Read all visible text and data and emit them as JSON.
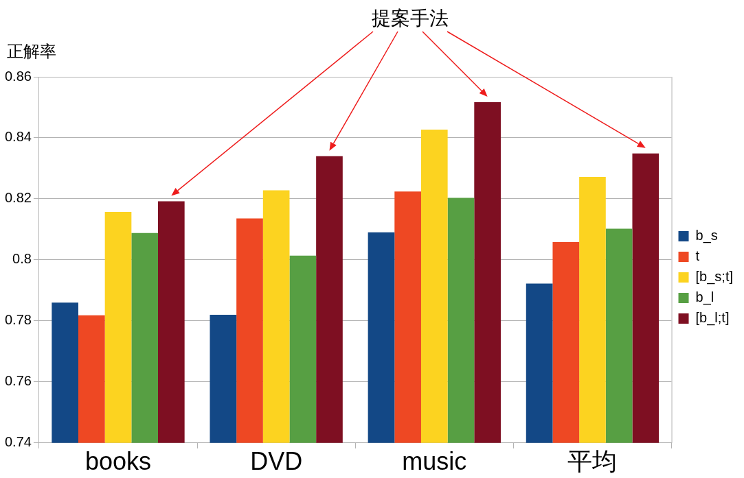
{
  "chart_data": {
    "type": "bar",
    "annotations": [
      "提案手法"
    ],
    "ylabel": "正解率",
    "categories": [
      "books",
      "DVD",
      "music",
      "平均"
    ],
    "series": [
      {
        "name": "b_s",
        "color": "#134886",
        "values": [
          0.786,
          0.782,
          0.809,
          0.7922
        ]
      },
      {
        "name": "t",
        "color": "#ee4823",
        "values": [
          0.7818,
          0.8136,
          0.8224,
          0.8058
        ]
      },
      {
        "name": "[b_s;t]",
        "color": "#fcd320",
        "values": [
          0.8157,
          0.8228,
          0.8427,
          0.8272
        ]
      },
      {
        "name": "b_l",
        "color": "#579f43",
        "values": [
          0.8088,
          0.8014,
          0.8203,
          0.8102
        ]
      },
      {
        "name": "[b_l;t]",
        "color": "#7e0f22",
        "values": [
          0.8192,
          0.834,
          0.8517,
          0.8349
        ]
      }
    ],
    "ylim": [
      0.74,
      0.86
    ],
    "yticks": [
      0.74,
      0.76,
      0.78,
      0.8,
      0.82,
      0.84,
      0.86
    ],
    "grid": "y",
    "legend": "right"
  }
}
